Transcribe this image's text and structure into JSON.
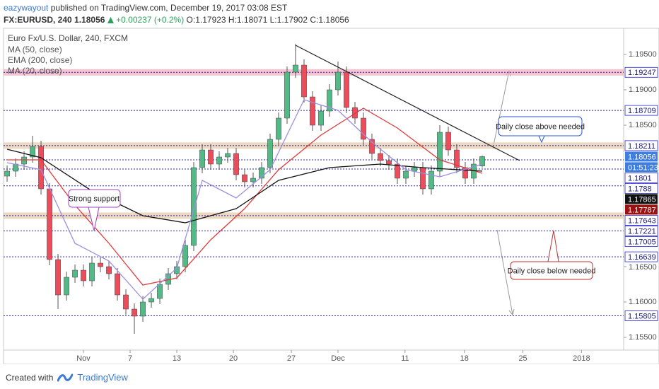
{
  "header": {
    "author": "eazywayout",
    "published": "published on TradingView.com, December 19, 2017 03:08 EST",
    "symbol": "FX:EURUSD, 240",
    "price": "1.18056",
    "change": "+0.00237 (+0.2%)",
    "quote": "O:1.17923 H:1.18071 L:1.17902 C:1.18056"
  },
  "chart_data": {
    "type": "candlestick",
    "title": "Euro Fx/U.S. Dollar, 240, FXCM",
    "up_color": "#53b987",
    "down_color": "#eb4d5c",
    "grid": false,
    "x": [
      0,
      1,
      2,
      3,
      4,
      5,
      6,
      7,
      8,
      9,
      10,
      11,
      12,
      13,
      14,
      15,
      16,
      17,
      18,
      19,
      20,
      21,
      22,
      23,
      24,
      25,
      26,
      27,
      28,
      29,
      30,
      31,
      32,
      33,
      34,
      35,
      36,
      37,
      38,
      39,
      40,
      41,
      42,
      43,
      44,
      45,
      46,
      47,
      48,
      49,
      50,
      51,
      52,
      53,
      54,
      55,
      56
    ],
    "open": [
      1.1778,
      1.1785,
      1.1795,
      1.1805,
      1.182,
      1.176,
      1.166,
      1.161,
      1.1635,
      1.1645,
      1.163,
      1.1655,
      1.165,
      1.164,
      1.161,
      1.159,
      1.158,
      1.16,
      1.1605,
      1.1625,
      1.164,
      1.165,
      1.168,
      1.179,
      1.1815,
      1.1795,
      1.1805,
      1.181,
      1.178,
      1.177,
      1.1775,
      1.179,
      1.183,
      1.186,
      1.1925,
      1.1935,
      1.189,
      1.185,
      1.187,
      1.19,
      1.1925,
      1.1875,
      1.186,
      1.183,
      1.181,
      1.18,
      1.1795,
      1.1775,
      1.1785,
      1.179,
      1.176,
      1.1785,
      1.184,
      1.1815,
      1.179,
      1.1775,
      1.17923
    ],
    "high": [
      1.1793,
      1.1803,
      1.1813,
      1.1835,
      1.1828,
      1.1768,
      1.1668,
      1.1643,
      1.1653,
      1.1653,
      1.1663,
      1.1663,
      1.1658,
      1.1648,
      1.1618,
      1.1598,
      1.1608,
      1.1613,
      1.1633,
      1.1648,
      1.1658,
      1.1688,
      1.1798,
      1.1823,
      1.1823,
      1.1813,
      1.1818,
      1.1818,
      1.1788,
      1.1783,
      1.1798,
      1.1838,
      1.1868,
      1.1933,
      1.1965,
      1.1943,
      1.1898,
      1.1878,
      1.1908,
      1.194,
      1.1933,
      1.1883,
      1.1868,
      1.1838,
      1.1818,
      1.1808,
      1.1803,
      1.1793,
      1.1798,
      1.1798,
      1.1793,
      1.185,
      1.1848,
      1.1823,
      1.1798,
      1.1803,
      1.18071
    ],
    "low": [
      1.177,
      1.1777,
      1.1787,
      1.1797,
      1.1752,
      1.1652,
      1.159,
      1.1602,
      1.1627,
      1.1622,
      1.1622,
      1.1642,
      1.1632,
      1.1602,
      1.1582,
      1.1555,
      1.1572,
      1.1592,
      1.1597,
      1.1617,
      1.1632,
      1.1642,
      1.1672,
      1.1782,
      1.1787,
      1.1787,
      1.1797,
      1.1772,
      1.1762,
      1.1762,
      1.1767,
      1.1782,
      1.1822,
      1.1852,
      1.1917,
      1.1882,
      1.1842,
      1.1842,
      1.1862,
      1.1892,
      1.1867,
      1.1852,
      1.1822,
      1.1802,
      1.1792,
      1.1787,
      1.1767,
      1.1767,
      1.1777,
      1.1752,
      1.1752,
      1.1777,
      1.1807,
      1.1782,
      1.1767,
      1.1767,
      1.17902
    ],
    "close": [
      1.1785,
      1.1795,
      1.1805,
      1.182,
      1.176,
      1.166,
      1.161,
      1.1635,
      1.1645,
      1.163,
      1.1655,
      1.165,
      1.164,
      1.161,
      1.159,
      1.158,
      1.16,
      1.1605,
      1.1625,
      1.164,
      1.165,
      1.168,
      1.179,
      1.1815,
      1.1795,
      1.1805,
      1.181,
      1.178,
      1.177,
      1.1775,
      1.179,
      1.183,
      1.186,
      1.1925,
      1.1935,
      1.189,
      1.185,
      1.187,
      1.19,
      1.1925,
      1.1875,
      1.186,
      1.183,
      1.181,
      1.18,
      1.1795,
      1.1775,
      1.1785,
      1.179,
      1.176,
      1.1785,
      1.184,
      1.1815,
      1.179,
      1.1775,
      1.1795,
      1.18056
    ],
    "series": [
      {
        "name": "MA (50, close)",
        "color": "#e03a3a",
        "x": [
          0,
          4,
          8,
          12,
          16,
          20,
          24,
          28,
          32,
          37,
          42,
          46,
          51,
          56
        ],
        "values": [
          1.1801,
          1.1801,
          1.1737,
          1.1683,
          1.1624,
          1.1634,
          1.1688,
          1.1732,
          1.1787,
          1.1836,
          1.1874,
          1.1846,
          1.1801,
          1.1782
        ]
      },
      {
        "name": "EMA (200, close)",
        "color": "#111111",
        "x": [
          0,
          4,
          10,
          16,
          21,
          27,
          32,
          38,
          44,
          49,
          56
        ],
        "values": [
          1.1816,
          1.1804,
          1.1757,
          1.1722,
          1.1712,
          1.1732,
          1.1772,
          1.179,
          1.1795,
          1.179,
          1.1785
        ]
      },
      {
        "name": "MA (20, close)",
        "color": "#9b8fe0",
        "x": [
          0,
          4,
          8,
          12,
          16,
          20,
          23,
          27,
          31,
          35,
          39,
          43,
          47,
          51,
          56
        ],
        "values": [
          1.1797,
          1.1787,
          1.1683,
          1.1658,
          1.1604,
          1.1648,
          1.1772,
          1.1747,
          1.1787,
          1.1886,
          1.1871,
          1.1826,
          1.1787,
          1.1777,
          1.1795
        ]
      }
    ],
    "trendline": {
      "color": "#222222",
      "x": [
        34,
        60.4
      ],
      "values": [
        1.1963,
        1.18
      ]
    },
    "levels": [
      {
        "value": 1.19247,
        "zone": "#f2a9bd"
      },
      {
        "value": 1.18709
      },
      {
        "value": 1.18211,
        "zone": "#e4c9a6"
      },
      {
        "value": 1.1801
      },
      {
        "value": 1.1788
      },
      {
        "value": 1.17643
      },
      {
        "value": 1.17221,
        "zone": "#e4c9a6"
      },
      {
        "value": 1.17005
      },
      {
        "value": 1.16639
      },
      {
        "value": 1.15805
      }
    ],
    "level_color": "#2626d0",
    "price_badges": [
      {
        "value": 1.18056,
        "color": "#3d7ee0"
      },
      {
        "value": 1.17865,
        "color": "#111111"
      },
      {
        "value": 1.17787,
        "color": "#9b1010"
      }
    ],
    "countdown": "01:51:23",
    "annotations": [
      {
        "text": "Daily close above needed",
        "color": "#2f55d4"
      },
      {
        "text": "Strong support",
        "color": "#a040c0"
      },
      {
        "text": "Daily close below needed",
        "color": "#c03030"
      }
    ],
    "xlim": [
      -0.42,
      72.67
    ],
    "xticks": [
      {
        "value": 9,
        "label": "Nov"
      },
      14.5,
      20,
      26.67,
      33.5,
      {
        "value": 39,
        "label": "Dec"
      },
      46.9,
      53.9,
      60.8,
      67.7
    ],
    "xtick_labels": [
      "Nov",
      "7",
      "13",
      "20",
      "27",
      "Dec",
      "11",
      "18",
      "25",
      "2018"
    ],
    "ylim": [
      1.1532,
      1.1987
    ],
    "yticks": [
      {
        "value": 1.195,
        "label": "1.19500"
      },
      {
        "value": 1.19,
        "label": "1.19000"
      },
      {
        "value": 1.185,
        "label": "1.18500"
      },
      {
        "value": 1.165,
        "label": "1.16500"
      },
      {
        "value": 1.16,
        "label": "1.16000"
      },
      {
        "value": 1.155,
        "label": "1.15500"
      }
    ]
  },
  "footer": {
    "created": "Created with",
    "brand": "TradingView"
  }
}
